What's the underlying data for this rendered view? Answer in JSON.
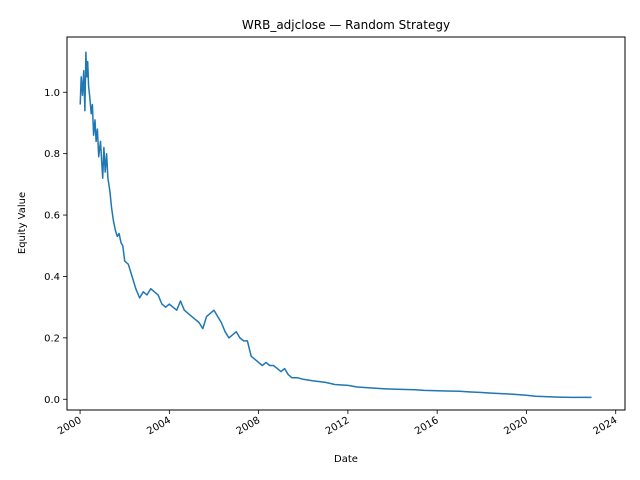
{
  "chart_data": {
    "type": "line",
    "title": "WRB_adjclose — Random Strategy",
    "xlabel": "Date",
    "ylabel": "Equity Value",
    "x_ticks": [
      "2000",
      "2004",
      "2008",
      "2012",
      "2016",
      "2020",
      "2024"
    ],
    "y_ticks": [
      "0.0",
      "0.2",
      "0.4",
      "0.6",
      "0.8",
      "1.0"
    ],
    "xlim": [
      "1999-06-01",
      "2024-06-01"
    ],
    "ylim": [
      -0.035,
      1.18
    ],
    "grid": false,
    "legend": "none",
    "line_color": "#1f77b4",
    "series": [
      {
        "x": [
          "2000-01-03",
          "2000-01-20",
          "2000-02-10",
          "2000-03-01",
          "2000-03-20",
          "2000-04-05",
          "2000-04-20",
          "2000-05-05",
          "2000-05-20",
          "2000-06-10",
          "2000-07-01",
          "2000-07-20",
          "2000-08-10",
          "2000-09-01",
          "2000-09-20",
          "2000-10-10",
          "2000-11-01",
          "2000-12-01",
          "2001-01-05",
          "2001-01-25",
          "2001-02-15",
          "2001-03-10",
          "2001-04-01",
          "2001-05-01",
          "2001-06-01",
          "2001-07-01",
          "2001-08-01",
          "2001-09-01",
          "2001-10-01",
          "2001-11-01",
          "2001-12-01",
          "2002-01-01",
          "2002-03-01",
          "2002-05-01",
          "2002-07-01",
          "2002-09-01",
          "2002-11-01",
          "2003-01-01",
          "2003-03-01",
          "2003-05-01",
          "2003-07-01",
          "2003-09-01",
          "2003-11-01",
          "2004-01-01",
          "2004-03-01",
          "2004-05-01",
          "2004-07-01",
          "2004-09-01",
          "2004-11-01",
          "2005-01-01",
          "2005-03-01",
          "2005-05-01",
          "2005-07-01",
          "2005-09-01",
          "2005-11-01",
          "2006-01-01",
          "2006-03-01",
          "2006-05-01",
          "2006-07-01",
          "2006-09-01",
          "2006-11-01",
          "2007-01-01",
          "2007-03-01",
          "2007-05-01",
          "2007-07-01",
          "2007-09-01",
          "2007-11-01",
          "2008-01-01",
          "2008-03-01",
          "2008-05-01",
          "2008-07-01",
          "2008-09-01",
          "2008-11-01",
          "2009-01-01",
          "2009-03-01",
          "2009-05-01",
          "2009-07-01",
          "2009-10-01",
          "2010-01-01",
          "2010-06-01",
          "2011-01-01",
          "2011-06-01",
          "2012-01-01",
          "2012-06-01",
          "2013-01-01",
          "2013-06-01",
          "2014-01-01",
          "2014-06-01",
          "2015-01-01",
          "2015-06-01",
          "2016-01-01",
          "2016-06-01",
          "2017-01-01",
          "2017-06-01",
          "2018-01-01",
          "2018-06-01",
          "2019-01-01",
          "2019-06-01",
          "2020-01-01",
          "2020-06-01",
          "2021-01-01",
          "2021-06-01",
          "2022-01-01",
          "2022-06-01",
          "2022-12-01"
        ],
        "values": [
          0.96,
          1.05,
          0.99,
          1.07,
          0.94,
          1.13,
          1.05,
          1.1,
          1.02,
          0.98,
          0.93,
          0.96,
          0.86,
          0.91,
          0.84,
          0.88,
          0.79,
          0.84,
          0.72,
          0.82,
          0.74,
          0.8,
          0.72,
          0.68,
          0.62,
          0.58,
          0.55,
          0.53,
          0.54,
          0.51,
          0.5,
          0.45,
          0.44,
          0.4,
          0.36,
          0.33,
          0.35,
          0.34,
          0.36,
          0.35,
          0.34,
          0.31,
          0.3,
          0.31,
          0.3,
          0.29,
          0.32,
          0.29,
          0.28,
          0.27,
          0.26,
          0.25,
          0.23,
          0.27,
          0.28,
          0.29,
          0.27,
          0.25,
          0.22,
          0.2,
          0.21,
          0.22,
          0.2,
          0.19,
          0.19,
          0.14,
          0.13,
          0.12,
          0.11,
          0.12,
          0.11,
          0.11,
          0.1,
          0.09,
          0.1,
          0.08,
          0.07,
          0.07,
          0.065,
          0.06,
          0.055,
          0.048,
          0.045,
          0.04,
          0.037,
          0.035,
          0.033,
          0.032,
          0.031,
          0.029,
          0.028,
          0.027,
          0.026,
          0.024,
          0.022,
          0.02,
          0.018,
          0.016,
          0.013,
          0.01,
          0.008,
          0.007,
          0.006,
          0.006,
          0.006
        ]
      }
    ]
  }
}
